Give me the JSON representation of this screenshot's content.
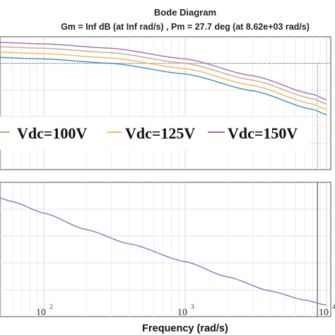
{
  "chart_data": {
    "type": "line",
    "title": "Bode Diagram",
    "subtitle": "Gm = Inf dB (at Inf rad/s) ,  Pm = 27.7 deg (at 8.62e+03 rad/s)",
    "xlabel": "Frequency  (rad/s)",
    "x_scale": "log",
    "xlim": [
      40,
      10000
    ],
    "x_ticks": [
      {
        "value": 100,
        "base": "10",
        "exp": "2"
      },
      {
        "value": 1000,
        "base": "10",
        "exp": "3"
      },
      {
        "value": 10000,
        "base": "10",
        "exp": "4"
      }
    ],
    "grid": true,
    "legend": {
      "placement": "middle",
      "entries": [
        {
          "name": "Vdc=100V",
          "color": "#c4a882"
        },
        {
          "name": "Vdc=125V",
          "color": "#e8b75a"
        },
        {
          "name": "Vdc=150V",
          "color": "#9b6fae"
        }
      ]
    },
    "crossover_frequency": 8620,
    "magnitude": {
      "ylim": [
        -12,
        3
      ],
      "reference_level": 0,
      "series": [
        {
          "name": "Vdc=100V",
          "color": "#c4a882",
          "x": [
            40,
            100,
            300,
            1000,
            3000,
            8000,
            10000
          ],
          "y": [
            1.9,
            1.7,
            1.2,
            0.0,
            -1.9,
            -4.0,
            -4.6
          ]
        },
        {
          "name": "Vdc=125V",
          "color": "#e8b75a",
          "x": [
            40,
            100,
            300,
            1000,
            3000,
            8000,
            10000
          ],
          "y": [
            1.3,
            1.1,
            0.6,
            -0.6,
            -2.5,
            -4.6,
            -5.2
          ]
        },
        {
          "name": "Vdc=150V",
          "color": "#9b6fae",
          "x": [
            40,
            100,
            300,
            1000,
            3000,
            8000,
            10000
          ],
          "y": [
            2.4,
            2.2,
            1.7,
            0.5,
            -1.4,
            -3.5,
            -4.1
          ]
        },
        {
          "name": "",
          "color": "#3a8fc2",
          "x": [
            40,
            100,
            300,
            1000,
            3000,
            8000,
            10000
          ],
          "y": [
            0.7,
            0.5,
            0.0,
            -1.2,
            -3.1,
            -5.2,
            -5.8
          ]
        }
      ]
    },
    "phase": {
      "ylim": [
        -160,
        -55
      ],
      "series": [
        {
          "name": "Vdc=150V",
          "color": "#9b6fae",
          "x": [
            40,
            60,
            100,
            200,
            400,
            1000,
            2000,
            4000,
            7000,
            10000
          ],
          "y": [
            -64,
            -70,
            -79,
            -92,
            -103,
            -117,
            -129,
            -140,
            -147,
            -151
          ]
        }
      ]
    }
  }
}
